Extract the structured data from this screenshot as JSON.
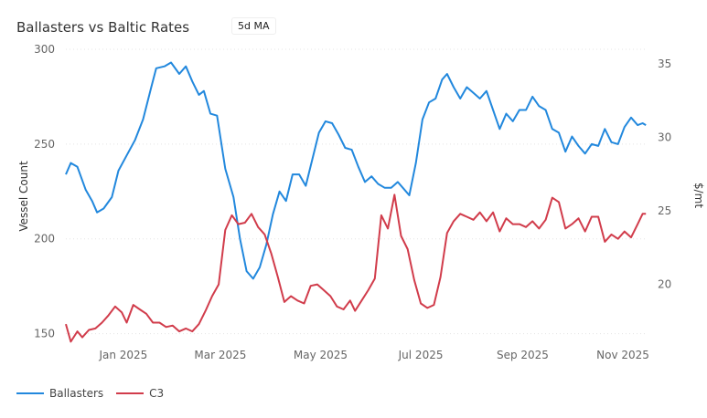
{
  "header": {
    "title": "Ballasters vs Baltic Rates",
    "badge": "5d MA"
  },
  "chart_data": {
    "type": "line",
    "title": "Ballasters vs Baltic Rates",
    "x_range": [
      "2024-12-11",
      "2025-11-30"
    ],
    "x_ticks": [
      {
        "date": "2025-01-15",
        "label": "Jan 2025"
      },
      {
        "date": "2025-03-15",
        "label": "Mar 2025"
      },
      {
        "date": "2025-05-15",
        "label": "May 2025"
      },
      {
        "date": "2025-07-15",
        "label": "Jul 2025"
      },
      {
        "date": "2025-09-15",
        "label": "Sep 2025"
      },
      {
        "date": "2025-11-15",
        "label": "Nov 2025"
      }
    ],
    "y_left": {
      "label": "Vessel Count",
      "range": [
        145,
        300
      ],
      "ticks": [
        150,
        200,
        250,
        300
      ]
    },
    "y_right": {
      "label": "$/mt",
      "range": [
        16,
        36
      ],
      "ticks": [
        20,
        25,
        30,
        35
      ]
    },
    "series": [
      {
        "name": "Ballasters",
        "axis": "left",
        "color": "#2288dd",
        "points": [
          [
            "2024-12-11",
            234
          ],
          [
            "2024-12-14",
            240
          ],
          [
            "2024-12-18",
            238
          ],
          [
            "2024-12-23",
            226
          ],
          [
            "2024-12-27",
            220
          ],
          [
            "2024-12-30",
            214
          ],
          [
            "2025-01-03",
            216
          ],
          [
            "2025-01-08",
            222
          ],
          [
            "2025-01-12",
            236
          ],
          [
            "2025-01-17",
            244
          ],
          [
            "2025-01-22",
            252
          ],
          [
            "2025-01-27",
            263
          ],
          [
            "2025-02-01",
            280
          ],
          [
            "2025-02-04",
            290
          ],
          [
            "2025-02-09",
            291
          ],
          [
            "2025-02-13",
            293
          ],
          [
            "2025-02-18",
            287
          ],
          [
            "2025-02-22",
            291
          ],
          [
            "2025-02-26",
            283
          ],
          [
            "2025-03-02",
            276
          ],
          [
            "2025-03-05",
            278
          ],
          [
            "2025-03-09",
            266
          ],
          [
            "2025-03-13",
            265
          ],
          [
            "2025-03-18",
            237
          ],
          [
            "2025-03-23",
            222
          ],
          [
            "2025-03-27",
            200
          ],
          [
            "2025-03-31",
            183
          ],
          [
            "2025-04-04",
            179
          ],
          [
            "2025-04-08",
            185
          ],
          [
            "2025-04-12",
            197
          ],
          [
            "2025-04-16",
            213
          ],
          [
            "2025-04-20",
            225
          ],
          [
            "2025-04-24",
            220
          ],
          [
            "2025-04-28",
            234
          ],
          [
            "2025-05-02",
            234
          ],
          [
            "2025-05-06",
            228
          ],
          [
            "2025-05-10",
            242
          ],
          [
            "2025-05-14",
            256
          ],
          [
            "2025-05-18",
            262
          ],
          [
            "2025-05-22",
            261
          ],
          [
            "2025-05-26",
            255
          ],
          [
            "2025-05-30",
            248
          ],
          [
            "2025-06-03",
            247
          ],
          [
            "2025-06-07",
            238
          ],
          [
            "2025-06-11",
            230
          ],
          [
            "2025-06-15",
            233
          ],
          [
            "2025-06-19",
            229
          ],
          [
            "2025-06-23",
            227
          ],
          [
            "2025-06-27",
            227
          ],
          [
            "2025-07-01",
            230
          ],
          [
            "2025-07-05",
            226
          ],
          [
            "2025-07-08",
            223
          ],
          [
            "2025-07-12",
            240
          ],
          [
            "2025-07-16",
            263
          ],
          [
            "2025-07-20",
            272
          ],
          [
            "2025-07-24",
            274
          ],
          [
            "2025-07-28",
            284
          ],
          [
            "2025-07-31",
            287
          ],
          [
            "2025-08-04",
            280
          ],
          [
            "2025-08-08",
            274
          ],
          [
            "2025-08-12",
            280
          ],
          [
            "2025-08-16",
            277
          ],
          [
            "2025-08-20",
            274
          ],
          [
            "2025-08-24",
            278
          ],
          [
            "2025-08-28",
            268
          ],
          [
            "2025-09-01",
            258
          ],
          [
            "2025-09-05",
            266
          ],
          [
            "2025-09-09",
            262
          ],
          [
            "2025-09-13",
            268
          ],
          [
            "2025-09-17",
            268
          ],
          [
            "2025-09-21",
            275
          ],
          [
            "2025-09-25",
            270
          ],
          [
            "2025-09-29",
            268
          ],
          [
            "2025-10-03",
            258
          ],
          [
            "2025-10-07",
            256
          ],
          [
            "2025-10-11",
            246
          ],
          [
            "2025-10-15",
            254
          ],
          [
            "2025-10-19",
            249
          ],
          [
            "2025-10-23",
            245
          ],
          [
            "2025-10-27",
            250
          ],
          [
            "2025-10-31",
            249
          ],
          [
            "2025-11-04",
            258
          ],
          [
            "2025-11-08",
            251
          ],
          [
            "2025-11-12",
            250
          ],
          [
            "2025-11-16",
            259
          ],
          [
            "2025-11-20",
            264
          ],
          [
            "2025-11-24",
            260
          ],
          [
            "2025-11-27",
            261
          ],
          [
            "2025-11-29",
            260
          ]
        ]
      },
      {
        "name": "C3",
        "axis": "right",
        "color": "#d13c4b",
        "points": [
          [
            "2024-12-11",
            17.3
          ],
          [
            "2024-12-14",
            16.1
          ],
          [
            "2024-12-18",
            16.8
          ],
          [
            "2024-12-21",
            16.4
          ],
          [
            "2024-12-25",
            16.9
          ],
          [
            "2024-12-29",
            17.0
          ],
          [
            "2025-01-02",
            17.4
          ],
          [
            "2025-01-06",
            17.9
          ],
          [
            "2025-01-10",
            18.5
          ],
          [
            "2025-01-14",
            18.1
          ],
          [
            "2025-01-17",
            17.4
          ],
          [
            "2025-01-21",
            18.6
          ],
          [
            "2025-01-25",
            18.3
          ],
          [
            "2025-01-29",
            18.0
          ],
          [
            "2025-02-02",
            17.4
          ],
          [
            "2025-02-06",
            17.4
          ],
          [
            "2025-02-10",
            17.1
          ],
          [
            "2025-02-14",
            17.2
          ],
          [
            "2025-02-18",
            16.8
          ],
          [
            "2025-02-22",
            17.0
          ],
          [
            "2025-02-26",
            16.8
          ],
          [
            "2025-03-02",
            17.3
          ],
          [
            "2025-03-06",
            18.2
          ],
          [
            "2025-03-10",
            19.2
          ],
          [
            "2025-03-14",
            20.0
          ],
          [
            "2025-03-18",
            23.7
          ],
          [
            "2025-03-22",
            24.7
          ],
          [
            "2025-03-26",
            24.1
          ],
          [
            "2025-03-30",
            24.2
          ],
          [
            "2025-04-03",
            24.8
          ],
          [
            "2025-04-07",
            23.9
          ],
          [
            "2025-04-11",
            23.4
          ],
          [
            "2025-04-15",
            22.1
          ],
          [
            "2025-04-19",
            20.5
          ],
          [
            "2025-04-23",
            18.8
          ],
          [
            "2025-04-27",
            19.2
          ],
          [
            "2025-05-01",
            18.9
          ],
          [
            "2025-05-05",
            18.7
          ],
          [
            "2025-05-09",
            19.9
          ],
          [
            "2025-05-13",
            20.0
          ],
          [
            "2025-05-17",
            19.6
          ],
          [
            "2025-05-21",
            19.2
          ],
          [
            "2025-05-25",
            18.5
          ],
          [
            "2025-05-29",
            18.3
          ],
          [
            "2025-06-02",
            18.9
          ],
          [
            "2025-06-05",
            18.2
          ],
          [
            "2025-06-09",
            18.9
          ],
          [
            "2025-06-13",
            19.6
          ],
          [
            "2025-06-17",
            20.4
          ],
          [
            "2025-06-21",
            24.7
          ],
          [
            "2025-06-25",
            23.8
          ],
          [
            "2025-06-29",
            26.1
          ],
          [
            "2025-07-03",
            23.3
          ],
          [
            "2025-07-07",
            22.4
          ],
          [
            "2025-07-11",
            20.3
          ],
          [
            "2025-07-15",
            18.7
          ],
          [
            "2025-07-19",
            18.4
          ],
          [
            "2025-07-23",
            18.6
          ],
          [
            "2025-07-27",
            20.5
          ],
          [
            "2025-07-31",
            23.5
          ],
          [
            "2025-08-04",
            24.3
          ],
          [
            "2025-08-08",
            24.8
          ],
          [
            "2025-08-12",
            24.6
          ],
          [
            "2025-08-16",
            24.4
          ],
          [
            "2025-08-20",
            24.9
          ],
          [
            "2025-08-24",
            24.3
          ],
          [
            "2025-08-28",
            24.9
          ],
          [
            "2025-09-01",
            23.6
          ],
          [
            "2025-09-05",
            24.5
          ],
          [
            "2025-09-09",
            24.1
          ],
          [
            "2025-09-13",
            24.1
          ],
          [
            "2025-09-17",
            23.9
          ],
          [
            "2025-09-21",
            24.3
          ],
          [
            "2025-09-25",
            23.8
          ],
          [
            "2025-09-29",
            24.4
          ],
          [
            "2025-10-03",
            25.9
          ],
          [
            "2025-10-07",
            25.6
          ],
          [
            "2025-10-11",
            23.8
          ],
          [
            "2025-10-15",
            24.1
          ],
          [
            "2025-10-19",
            24.5
          ],
          [
            "2025-10-23",
            23.6
          ],
          [
            "2025-10-27",
            24.6
          ],
          [
            "2025-10-31",
            24.6
          ],
          [
            "2025-11-04",
            22.9
          ],
          [
            "2025-11-08",
            23.4
          ],
          [
            "2025-11-12",
            23.1
          ],
          [
            "2025-11-16",
            23.6
          ],
          [
            "2025-11-20",
            23.2
          ],
          [
            "2025-11-24",
            24.1
          ],
          [
            "2025-11-27",
            24.8
          ],
          [
            "2025-11-29",
            24.8
          ]
        ]
      }
    ],
    "legend": {
      "position": "bottom-left"
    },
    "grid": {
      "horizontal": true,
      "style": "dotted",
      "color": "#e4e4e4"
    }
  }
}
